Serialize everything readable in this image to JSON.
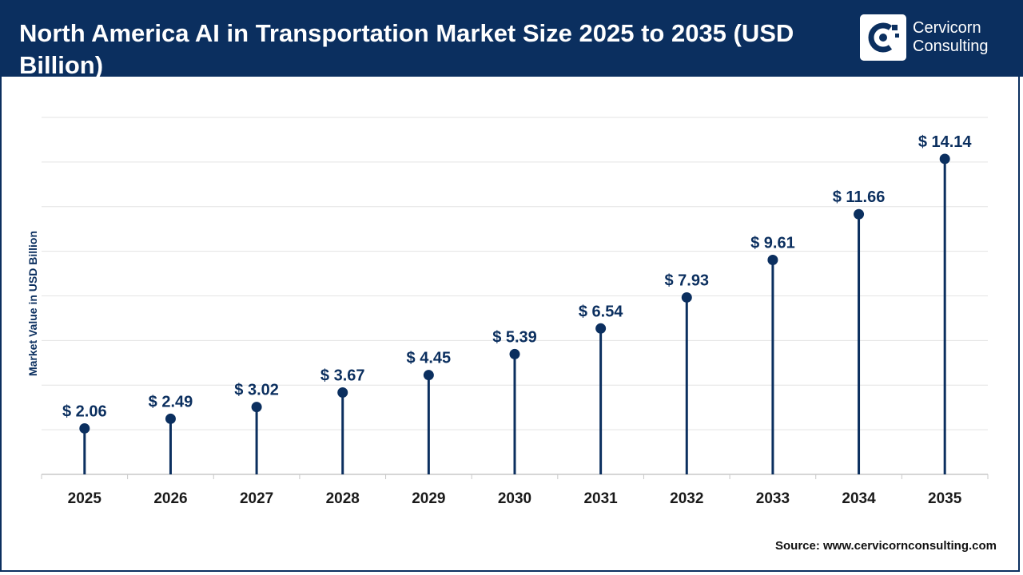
{
  "header": {
    "title": "North America AI in Transportation Market Size 2025 to 2035 (USD Billion)",
    "logo": {
      "line1": "Cervicorn",
      "line2": "Consulting",
      "icon": "cervicorn-logo-icon"
    }
  },
  "source": "Source: www.cervicornconsulting.com",
  "colors": {
    "primary": "#0b2f5f",
    "grid": "#e3e3e3",
    "axis": "#c8c8c8"
  },
  "chart_data": {
    "type": "lollipop",
    "categories": [
      "2025",
      "2026",
      "2027",
      "2028",
      "2029",
      "2030",
      "2031",
      "2032",
      "2033",
      "2034",
      "2035"
    ],
    "values": [
      2.06,
      2.49,
      3.02,
      3.67,
      4.45,
      5.39,
      6.54,
      7.93,
      9.61,
      11.66,
      14.14
    ],
    "data_labels": [
      "$ 2.06",
      "$ 2.49",
      "$ 3.02",
      "$ 3.67",
      "$ 4.45",
      "$ 5.39",
      "$ 6.54",
      "$ 7.93",
      "$ 9.61",
      "$ 11.66",
      "$ 14.14"
    ],
    "title": "North America AI in Transportation Market Size 2025 to 2035 (USD Billion)",
    "xlabel": "",
    "ylabel": "Market Value in USD Billion",
    "ylim": [
      0,
      16
    ],
    "grid": true,
    "legend": "none"
  }
}
